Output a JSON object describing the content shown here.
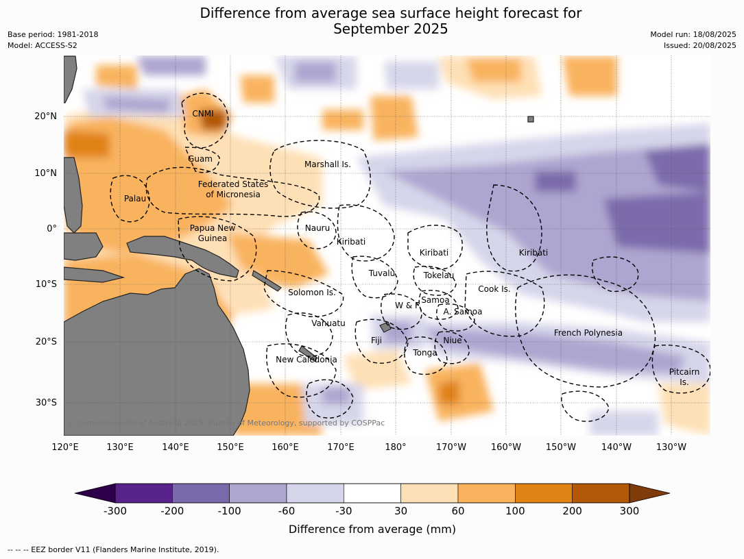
{
  "title_line1": "Difference from average sea surface height forecast for",
  "title_line2": "September 2025",
  "base_period": "Base period: 1981-2018",
  "model": "Model: ACCESS-S2",
  "model_run": "Model run: 18/08/2025",
  "issued": "Issued: 20/08/2025",
  "lon_ticks": [
    "120°E",
    "130°E",
    "140°E",
    "150°E",
    "160°E",
    "170°E",
    "180°",
    "170°W",
    "160°W",
    "150°W",
    "140°W",
    "130°W"
  ],
  "lat_ticks": [
    "20°N",
    "10°N",
    "0°",
    "10°S",
    "20°S",
    "30°S"
  ],
  "places": {
    "cnmi": "CNMI",
    "guam": "Guam",
    "marshall": "Marshall Is.",
    "fsm1": "Federated States",
    "fsm2": "of Micronesia",
    "palau": "Palau",
    "png1": "Papua New",
    "png2": "Guinea",
    "nauru": "Nauru",
    "kiribati_w": "Kiribati",
    "kiribati_c": "Kiribati",
    "kiribati_e": "Kiribati",
    "tuvalu": "Tuvalu",
    "tokelau": "Tokelau",
    "solomon": "Solomon Is.",
    "cook": "Cook Is.",
    "samoa": "Samoa",
    "wf": "W & F",
    "asamoa": "A. Samoa",
    "vanuatu": "Vanuatu",
    "fiji": "Fiji",
    "niue": "Niue",
    "tonga": "Tonga",
    "frpoly": "French Polynesia",
    "newcal": "New Caledonia",
    "pitcairn1": "Pitcairn",
    "pitcairn2": "Is."
  },
  "credit": "© Commonwealth of Australia 2025, Bureau of Meteorology, supported by COSPPac",
  "colorbar": {
    "labels": [
      "-300",
      "-200",
      "-100",
      "-60",
      "-30",
      "30",
      "60",
      "100",
      "200",
      "300"
    ],
    "colors": [
      "#57238a",
      "#7b6aab",
      "#aea6d0",
      "#d6d6ea",
      "#ffffff",
      "#fee0b6",
      "#f9b35e",
      "#e08214",
      "#b35806"
    ],
    "under_color": "#2d004b",
    "over_color": "#7f3b08",
    "title": "Difference from average (mm)"
  },
  "footer": "--  --  -- EEZ border V11 (Flanders Marine Institute, 2019)."
}
